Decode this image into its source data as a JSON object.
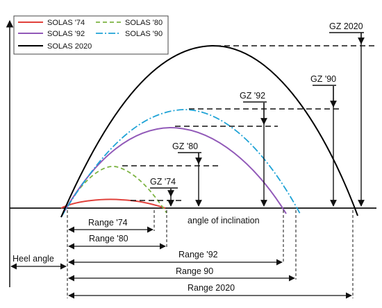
{
  "colors": {
    "solas74": "#e0403a",
    "solas80": "#7cb342",
    "solas92": "#9159b8",
    "solas90": "#1fa3d6",
    "solas2020": "#000000",
    "ink": "#111111"
  },
  "legend": [
    {
      "label": "SOLAS '74",
      "color": "#e0403a",
      "dash": "solid"
    },
    {
      "label": "SOLAS '80",
      "color": "#7cb342",
      "dash": "dashed"
    },
    {
      "label": "SOLAS '92",
      "color": "#9159b8",
      "dash": "solid"
    },
    {
      "label": "SOLAS '90",
      "color": "#1fa3d6",
      "dash": "dashdot"
    },
    {
      "label": "SOLAS 2020",
      "color": "#000000",
      "dash": "solid"
    }
  ],
  "gz_labels": {
    "gz74": "GZ '74",
    "gz80": "GZ '80",
    "gz92": "GZ '92",
    "gz90": "GZ '90",
    "gz2020": "GZ 2020"
  },
  "axis_label": "angle of inclination",
  "heel_label": "Heel angle",
  "ranges": {
    "r74": "Range '74",
    "r80": "Range '80",
    "r92": "Range '92",
    "r90": "Range 90",
    "r2020": "Range 2020"
  }
}
